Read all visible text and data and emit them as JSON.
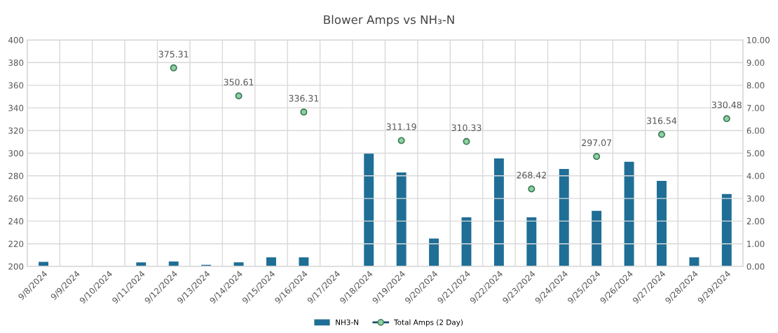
{
  "chart_data": {
    "type": "bar",
    "title": "Blower Amps vs NH₃-N",
    "categories": [
      "9/8/2024",
      "9/9/2024",
      "9/10/2024",
      "9/11/2024",
      "9/12/2024",
      "9/13/2024",
      "9/14/2024",
      "9/15/2024",
      "9/16/2024",
      "9/17/2024",
      "9/18/2024",
      "9/19/2024",
      "9/20/2024",
      "9/21/2024",
      "9/22/2024",
      "9/23/2024",
      "9/24/2024",
      "9/25/2024",
      "9/26/2024",
      "9/27/2024",
      "9/28/2024",
      "9/29/2024"
    ],
    "series": [
      {
        "name": "NH3-N",
        "axis": "y2",
        "color": "#1f6e96",
        "values": [
          0.2,
          0,
          0,
          0.18,
          0.22,
          0.07,
          0.18,
          0.4,
          0.4,
          0,
          5.0,
          4.15,
          1.23,
          2.17,
          4.77,
          2.17,
          4.3,
          2.45,
          4.62,
          3.78,
          0.4,
          3.2
        ]
      },
      {
        "name": "Total Amps (2 Day)",
        "type": "scatter",
        "axis": "y",
        "color": "#8fd19e",
        "marker": "circle",
        "values": [
          null,
          null,
          null,
          null,
          375.31,
          null,
          350.61,
          null,
          336.31,
          null,
          null,
          311.19,
          null,
          310.33,
          null,
          268.42,
          null,
          297.07,
          null,
          316.54,
          null,
          330.48
        ],
        "value_labels": [
          null,
          null,
          null,
          null,
          "375.31",
          null,
          "350.61",
          null,
          "336.31",
          null,
          null,
          "311.19",
          null,
          "310.33",
          null,
          "268.42",
          null,
          "297.07",
          null,
          "316.54",
          null,
          "330.48"
        ]
      }
    ],
    "ylim": [
      200,
      400
    ],
    "yticks": [
      200,
      220,
      240,
      260,
      280,
      300,
      320,
      340,
      360,
      380,
      400
    ],
    "y2lim": [
      0,
      10
    ],
    "y2ticks": [
      {
        "value": 0,
        "label": "0.00"
      },
      {
        "value": 1,
        "label": "1.00"
      },
      {
        "value": 2,
        "label": "2.00"
      },
      {
        "value": 3,
        "label": "3.00"
      },
      {
        "value": 4,
        "label": "4.00"
      },
      {
        "value": 5,
        "label": "5.00"
      },
      {
        "value": 6,
        "label": "6.00"
      },
      {
        "value": 7,
        "label": "7.00"
      },
      {
        "value": 8,
        "label": "8.00"
      },
      {
        "value": 9,
        "label": "9.00"
      },
      {
        "value": 10,
        "label": "10.00"
      }
    ],
    "grid": true,
    "legend": "bottom"
  }
}
